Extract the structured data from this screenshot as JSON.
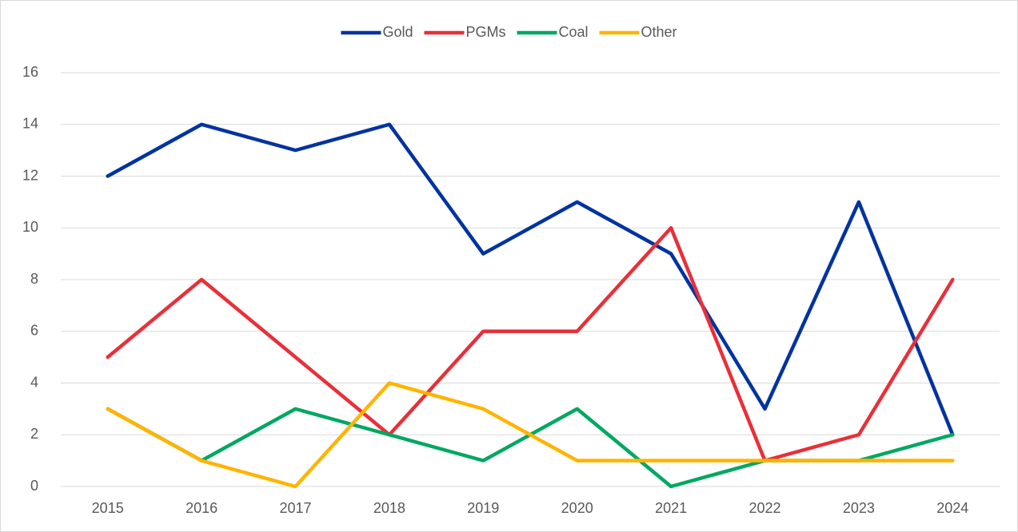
{
  "chart_data": {
    "type": "line",
    "categories": [
      "2015",
      "2016",
      "2017",
      "2018",
      "2019",
      "2020",
      "2021",
      "2022",
      "2023",
      "2024"
    ],
    "series": [
      {
        "name": "Gold",
        "color": "#0033a0",
        "values": [
          12,
          14,
          13,
          14,
          9,
          11,
          9,
          3,
          11,
          2
        ]
      },
      {
        "name": "PGMs",
        "color": "#e8303a",
        "values": [
          5,
          8,
          5,
          2,
          6,
          6,
          10,
          1,
          2,
          8
        ]
      },
      {
        "name": "Coal",
        "color": "#00a862",
        "values": [
          3,
          1,
          3,
          2,
          1,
          3,
          0,
          1,
          1,
          2
        ]
      },
      {
        "name": "Other",
        "color": "#ffb400",
        "values": [
          3,
          1,
          0,
          4,
          3,
          1,
          1,
          1,
          1,
          1
        ]
      }
    ],
    "ylim": [
      0,
      16
    ],
    "yticks": [
      0,
      2,
      4,
      6,
      8,
      10,
      12,
      14,
      16
    ],
    "grid": true,
    "legend": "top"
  }
}
